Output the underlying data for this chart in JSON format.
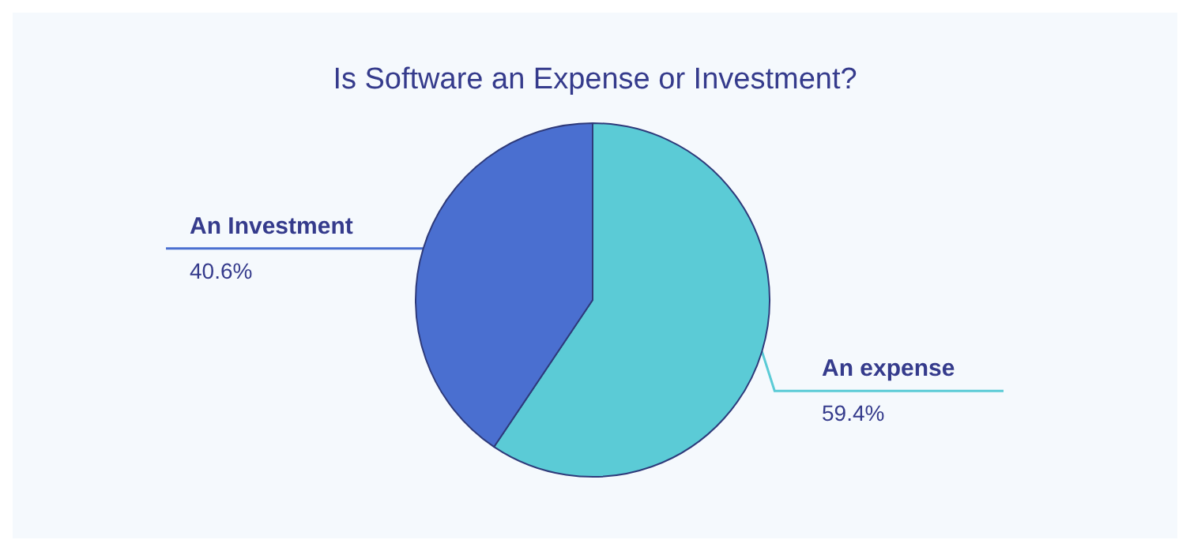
{
  "chart_data": {
    "type": "pie",
    "title": "Is Software an Expense or Investment?",
    "categories": [
      "An expense",
      "An Investment"
    ],
    "values": [
      59.4,
      40.6
    ],
    "colors": [
      "#5bcbd6",
      "#4a6fd0"
    ],
    "value_labels": [
      "59.4%",
      "40.6%"
    ],
    "legend": false
  }
}
